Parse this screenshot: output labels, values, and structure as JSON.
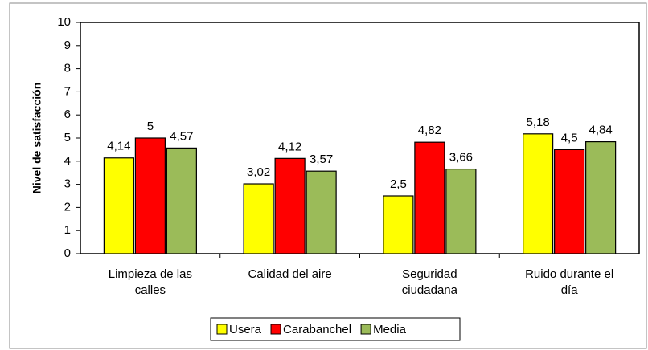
{
  "chart_data": {
    "type": "bar",
    "y_label": "Nivel de satisfacción",
    "categories": [
      "Limpieza de las calles",
      "Calidad del aire",
      "Seguridad ciudadana",
      "Ruido durante el día"
    ],
    "series": [
      {
        "name": "Usera",
        "color": "#ffff00",
        "values": [
          4.14,
          3.02,
          2.5,
          5.18
        ],
        "value_labels": [
          "4,14",
          "3,02",
          "2,5",
          "5,18"
        ]
      },
      {
        "name": "Carabanchel",
        "color": "#ff0000",
        "values": [
          5,
          4.12,
          4.82,
          4.5
        ],
        "value_labels": [
          "5",
          "4,12",
          "4,82",
          "4,5"
        ]
      },
      {
        "name": "Media",
        "color": "#9bbb59",
        "values": [
          4.57,
          3.57,
          3.66,
          4.84
        ],
        "value_labels": [
          "4,57",
          "3,57",
          "3,66",
          "4,84"
        ]
      }
    ],
    "ylim": [
      0,
      10
    ],
    "yticks": [
      0,
      1,
      2,
      3,
      4,
      5,
      6,
      7,
      8,
      9,
      10
    ],
    "grid": false,
    "legend": "bottom"
  }
}
